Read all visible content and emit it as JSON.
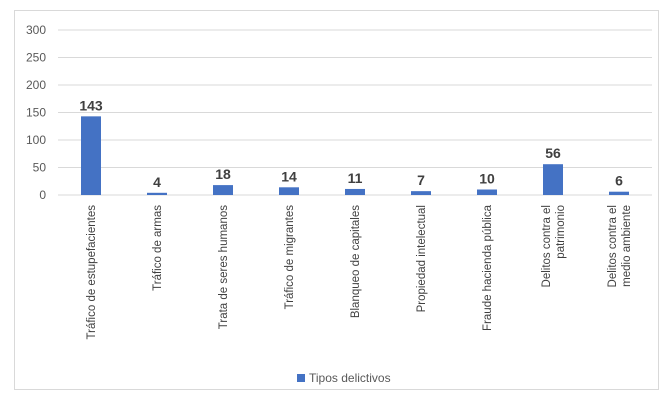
{
  "chart_data": {
    "type": "bar",
    "categories": [
      "Tráfico de estupefacientes",
      "Tráfico de armas",
      "Trata de seres humanos",
      "Tráfico de migrantes",
      "Blanqueo de capitales",
      "Propiedad intelectual",
      "Fraude hacienda pública",
      "Delitos contra el patrimonio",
      "Delitos contra el medio ambiente"
    ],
    "series": [
      {
        "name": "Tipos delictivos",
        "values": [
          143,
          4,
          18,
          14,
          11,
          7,
          10,
          56,
          6
        ]
      }
    ],
    "yticks": [
      "0",
      "50",
      "100",
      "150",
      "200",
      "250",
      "300"
    ],
    "ylim": [
      0,
      300
    ],
    "grid": true,
    "legend_position": "bottom",
    "colors": {
      "bar": "#4472c4",
      "grid": "#d9d9d9"
    }
  }
}
